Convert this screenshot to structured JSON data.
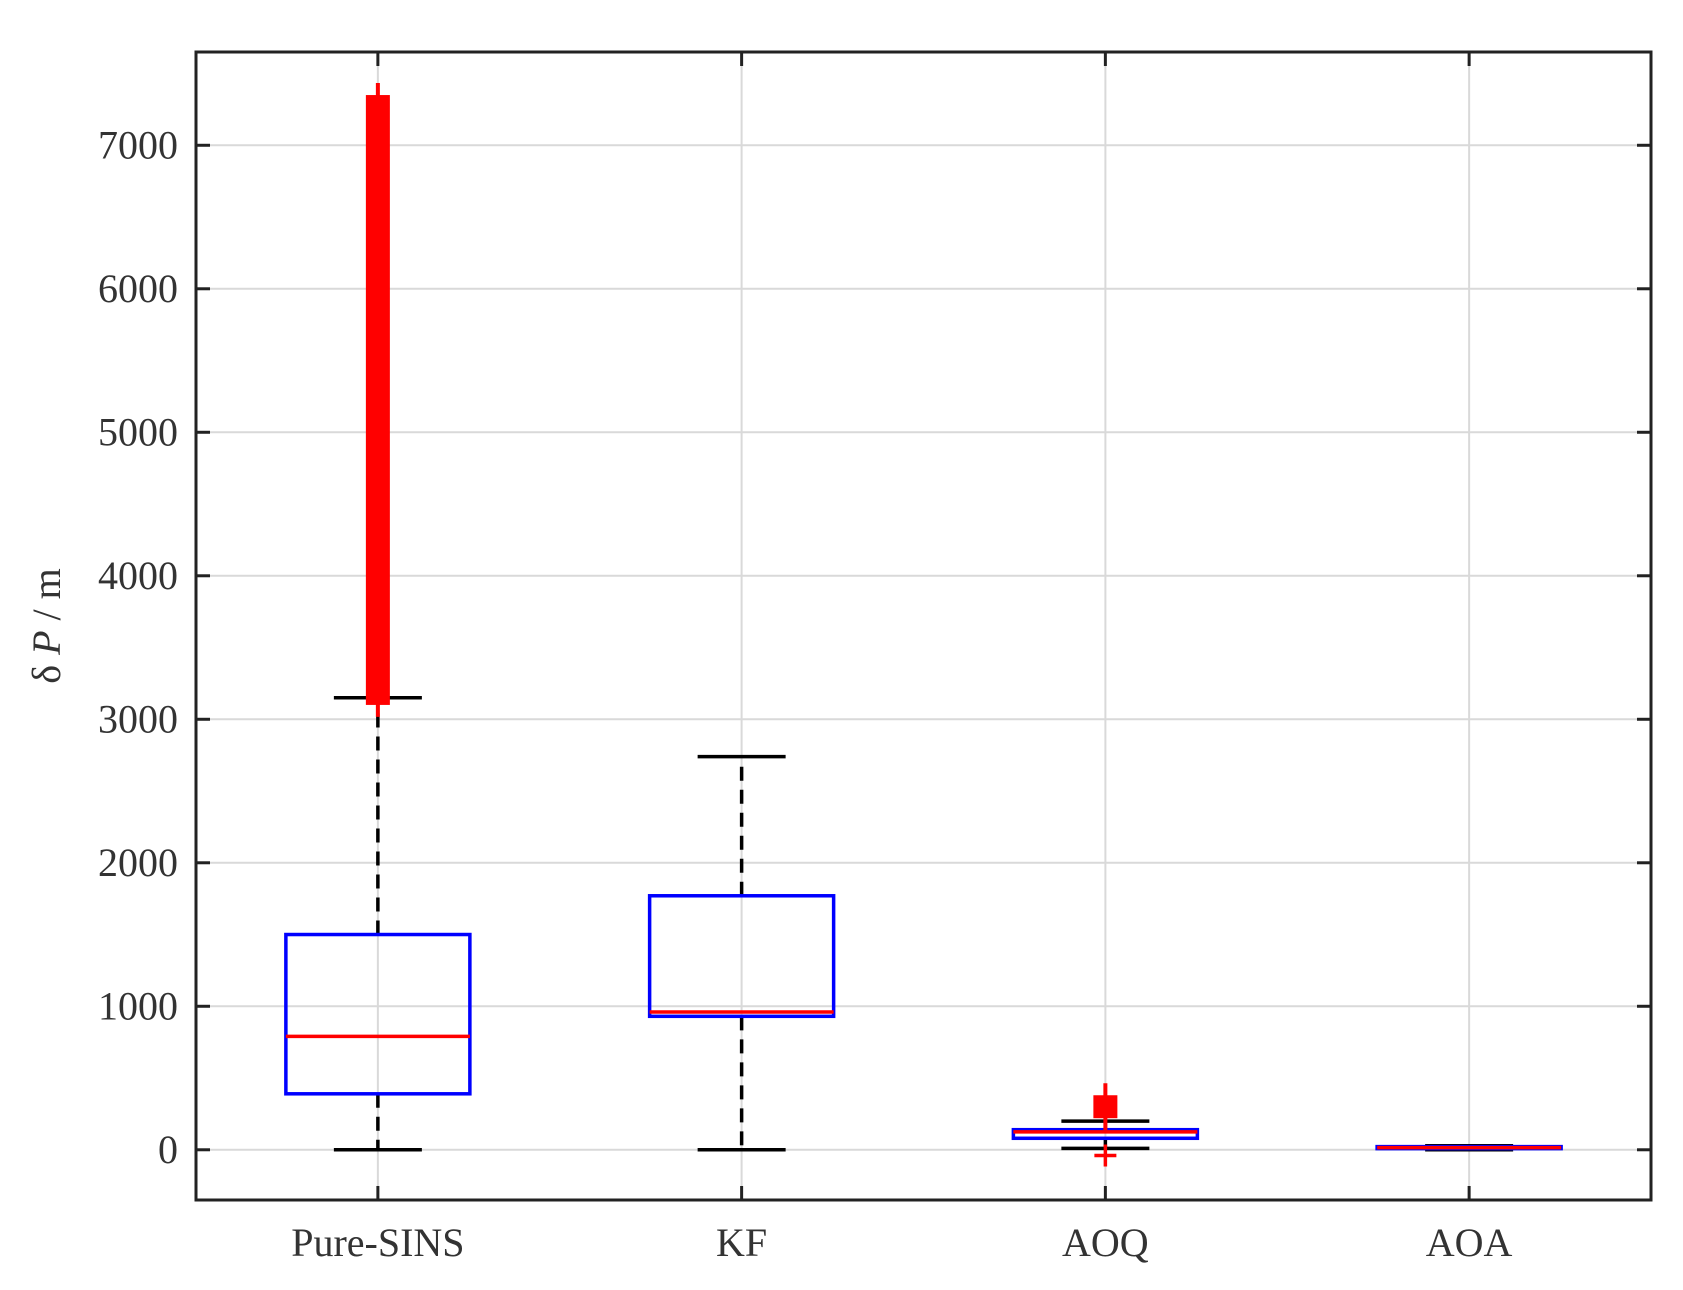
{
  "chart_data": {
    "type": "box",
    "title": "",
    "xlabel": "",
    "ylabel": {
      "symbol": "δ",
      "var": "P",
      "unit": " / m"
    },
    "ylim": [
      -350,
      7650
    ],
    "yticks": [
      0,
      1000,
      2000,
      3000,
      4000,
      5000,
      6000,
      7000
    ],
    "grid": true,
    "box_color": "#0000ff",
    "median_color": "#ff0000",
    "outlier_color": "#ff0000",
    "whisker_color": "#000000",
    "categories": [
      "Pure-SINS",
      "KF",
      "AOQ",
      "AOA"
    ],
    "boxes": [
      {
        "name": "Pure-SINS",
        "whisker_low": 0,
        "q1": 390,
        "median": 790,
        "q3": 1500,
        "whisker_high": 3150,
        "outlier_range": [
          3100,
          7350
        ]
      },
      {
        "name": "KF",
        "whisker_low": 0,
        "q1": 930,
        "median": 960,
        "q3": 1770,
        "whisker_high": 2740,
        "outlier_range": null
      },
      {
        "name": "AOQ",
        "whisker_low": 10,
        "q1": 80,
        "median": 125,
        "q3": 140,
        "whisker_high": 200,
        "outlier_range": [
          220,
          380
        ],
        "low_outlier": -40
      },
      {
        "name": "AOA",
        "whisker_low": 0,
        "q1": 8,
        "median": 15,
        "q3": 22,
        "whisker_high": 28,
        "outlier_range": null
      }
    ]
  }
}
